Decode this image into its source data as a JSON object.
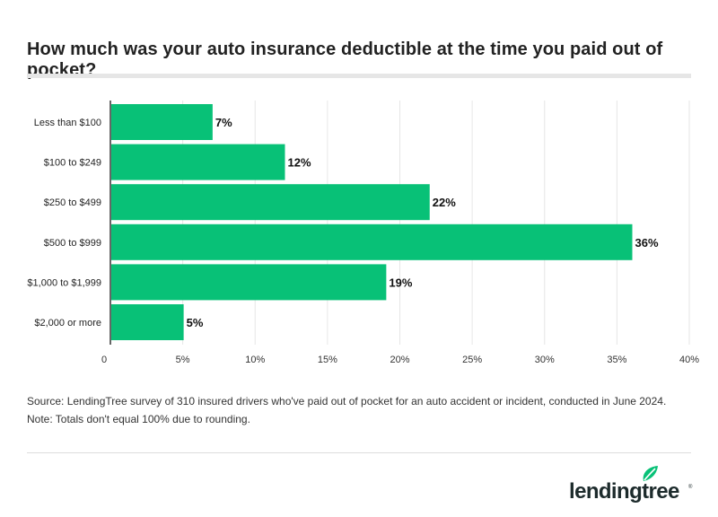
{
  "title": "How much was your auto insurance deductible at the time you paid out of pocket?",
  "source": "Source: LendingTree survey of 310 insured drivers who've paid out of pocket for an auto accident or incident, conducted in June 2024. Note: Totals don't equal 100% due to rounding.",
  "logo": {
    "text": "lendingtree",
    "reg": "®",
    "color": "#08c177"
  },
  "colors": {
    "bar": "#08c177",
    "grid": "#e6e6e6",
    "axis": "#333333",
    "label": "#222222"
  },
  "chart_data": {
    "type": "bar",
    "orientation": "horizontal",
    "categories": [
      "Less than $100",
      "$100 to $249",
      "$250 to $499",
      "$500 to $999",
      "$1,000 to $1,999",
      "$2,000 or more"
    ],
    "values": [
      7,
      12,
      22,
      36,
      19,
      5
    ],
    "value_labels": [
      "7%",
      "12%",
      "22%",
      "36%",
      "19%",
      "5%"
    ],
    "xlim": [
      0,
      40
    ],
    "xticks": [
      0,
      5,
      10,
      15,
      20,
      25,
      30,
      35,
      40
    ],
    "xtick_labels": [
      "0",
      "5%",
      "10%",
      "15%",
      "20%",
      "25%",
      "30%",
      "35%",
      "40%"
    ],
    "grid": true
  }
}
